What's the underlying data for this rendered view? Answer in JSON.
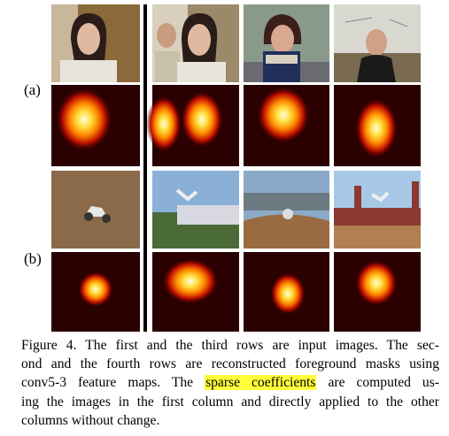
{
  "labels": {
    "a": "(a)",
    "b": "(b)"
  },
  "caption": {
    "line_1": "Figure 4. The first and the third rows are input images. The sec-",
    "line_2": "ond and the fourth rows are reconstructed foreground masks using",
    "line_3_before": "conv5-3 feature maps. The",
    "line_3_highlight": "sparse coefficients",
    "line_3_after": "are computed us-",
    "line_4": "ing the images in the first column and directly applied to the other",
    "line_5": "columns without change."
  }
}
